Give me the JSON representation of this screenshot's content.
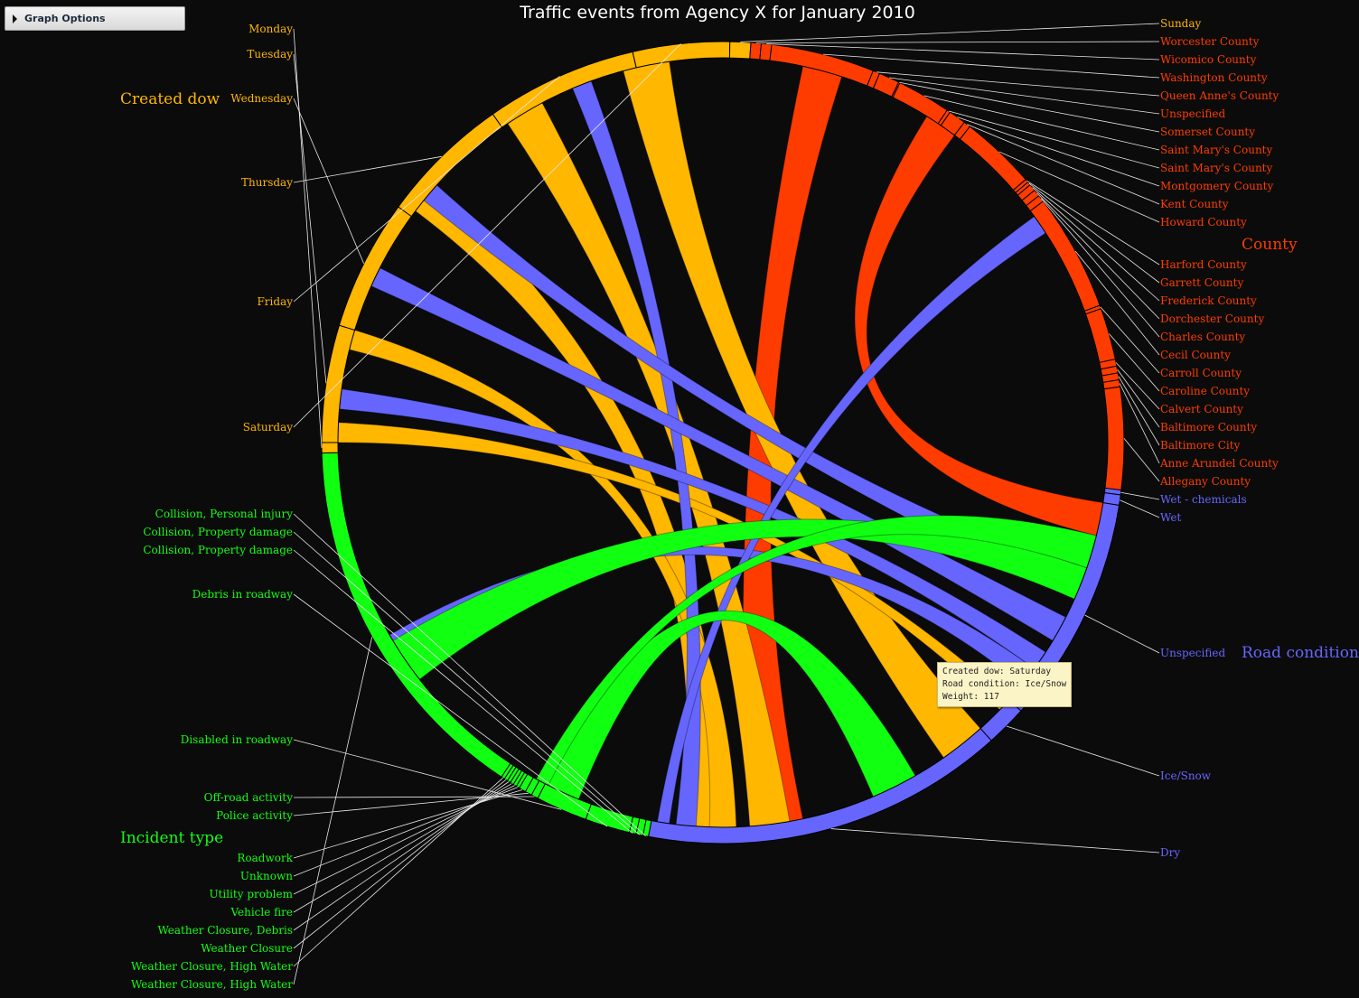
{
  "controls": {
    "graph_options_label": "Graph Options"
  },
  "tooltip": {
    "line1": "Created dow: Saturday",
    "line2": "Road condition: Ice/Snow",
    "line3": "Weight: 117"
  },
  "chart_data": {
    "type": "chord",
    "title": "Traffic events from Agency X for January 2010",
    "colors": {
      "County": "#ff3c00",
      "Road condition": "#6666ff",
      "Incident type": "#11ff11",
      "Created dow": "#ffb700"
    },
    "groups": [
      {
        "name": "County",
        "categories": [
          "Worcester County",
          "Wicomico County",
          "Washington County",
          "Queen Anne's County",
          "Unspecified",
          "Somerset County",
          "Saint Mary's County",
          "Saint Mary's County",
          "Montgomery County",
          "Kent County",
          "Howard County",
          "Harford County",
          "Garrett County",
          "Frederick County",
          "Dorchester County",
          "Charles County",
          "Cecil County",
          "Carroll County",
          "Caroline County",
          "Calvert County",
          "Baltimore County",
          "Baltimore City",
          "Anne Arundel County",
          "Allegany County"
        ]
      },
      {
        "name": "Road condition",
        "categories": [
          "Wet - chemicals",
          "Wet",
          "Unspecified",
          "Ice/Snow",
          "Dry"
        ]
      },
      {
        "name": "Incident type",
        "categories": [
          "Collision, Personal injury",
          "Collision, Property damage",
          "Collision, Property damage",
          "Debris in roadway",
          "Disabled in roadway",
          "Off-road activity",
          "Police activity",
          "Roadwork",
          "Unknown",
          "Utility problem",
          "Vehicle fire",
          "Weather Closure, Debris",
          "Weather Closure",
          "Weather Closure, High Water",
          "Weather Closure, High Water"
        ]
      },
      {
        "name": "Created dow",
        "categories": [
          "Monday",
          "Tuesday",
          "Wednesday",
          "Thursday",
          "Friday",
          "Saturday",
          "Sunday"
        ]
      }
    ],
    "links": [
      {
        "source": "Sunday",
        "target": "Unspecified"
      },
      {
        "source": "Saturday",
        "target": "Ice/Snow",
        "weight": 117
      },
      {
        "source": "Friday",
        "target": "Dry"
      },
      {
        "source": "Thursday",
        "target": "Dry"
      },
      {
        "source": "Wednesday",
        "target": "Dry"
      },
      {
        "source": "Debris in roadway",
        "target": "Dry"
      },
      {
        "source": "Disabled in roadway",
        "target": "Unspecified"
      },
      {
        "source": "Disabled in roadway",
        "target": "Dry"
      },
      {
        "source": "Wet",
        "target": "Unspecified"
      },
      {
        "source": "Tuesday",
        "target": "Dry"
      },
      {
        "source": "Friday",
        "target": "Unspecified"
      },
      {
        "source": "Saturday",
        "target": "Unspecified"
      },
      {
        "source": "Thursday",
        "target": "Unspecified"
      },
      {
        "source": "Debris in roadway",
        "target": "Unspecified"
      }
    ]
  }
}
